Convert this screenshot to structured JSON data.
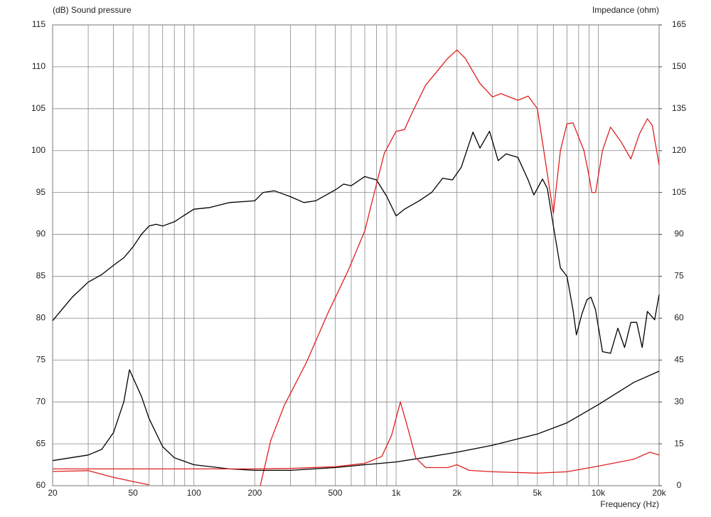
{
  "chart_data": {
    "type": "line",
    "xscale": "log",
    "ylabel": "(dB)  Sound pressure",
    "y2label": "Impedance  (ohm)",
    "xlabel": "Frequency  (Hz)",
    "xlim": [
      20,
      20000
    ],
    "xticks": [
      20,
      50,
      100,
      200,
      500,
      {
        "value": 1000,
        "label": "1k"
      },
      {
        "value": 2000,
        "label": "2k"
      },
      {
        "value": 5000,
        "label": "5k"
      },
      {
        "value": 10000,
        "label": "10k"
      },
      {
        "value": 20000,
        "label": "20k"
      }
    ],
    "xgrid": [
      30,
      40,
      60,
      70,
      80,
      90,
      300,
      400,
      600,
      700,
      800,
      900,
      3000,
      4000,
      6000,
      7000,
      8000,
      9000
    ],
    "ylim": [
      60,
      115
    ],
    "yticks": [
      60,
      65,
      70,
      75,
      80,
      85,
      90,
      95,
      100,
      105,
      110,
      115
    ],
    "y2lim": [
      0,
      165
    ],
    "y2ticks": [
      0,
      15,
      30,
      45,
      60,
      75,
      90,
      105,
      120,
      135,
      150,
      165
    ],
    "grid": true,
    "series": [
      {
        "color": "#000000",
        "x": [
          20,
          25,
          30,
          35,
          40,
          45,
          50,
          55,
          60,
          65,
          70,
          80,
          90,
          100,
          120,
          150,
          200,
          220,
          250,
          300,
          350,
          400,
          500,
          550,
          600,
          700,
          800,
          900,
          1000,
          1100,
          1300,
          1500,
          1700,
          1900,
          2100,
          2400,
          2600,
          2900,
          3200,
          3500,
          4000,
          4500,
          4800,
          5300,
          5600,
          6000,
          6500,
          7000,
          7500,
          7800,
          8300,
          8800,
          9200,
          9700,
          10500,
          11500,
          12500,
          13500,
          14500,
          15500,
          16500,
          17500,
          19000,
          20000
        ],
        "values": [
          79.7,
          82.5,
          84.3,
          85.2,
          86.3,
          87.2,
          88.5,
          90,
          91,
          91.2,
          91,
          91.5,
          92.3,
          93,
          93.2,
          93.8,
          94,
          95,
          95.2,
          94.5,
          93.8,
          94,
          95.3,
          96,
          95.8,
          96.9,
          96.5,
          94.5,
          92.2,
          93,
          94,
          95,
          96.7,
          96.5,
          98,
          102.2,
          100.3,
          102.3,
          98.8,
          99.6,
          99.2,
          96.5,
          94.7,
          96.6,
          95.5,
          91,
          86,
          85,
          81,
          78,
          80.5,
          82.2,
          82.5,
          81,
          76,
          75.8,
          78.8,
          76.5,
          79.5,
          79.5,
          76.5,
          80.8,
          79.8,
          82.8
        ]
      },
      {
        "color": "#e02020",
        "x": [
          20,
          30,
          40,
          50,
          60,
          200,
          213,
          240,
          280,
          360,
          460,
          580,
          700,
          800,
          875,
          1000,
          1100,
          1200,
          1400,
          1600,
          1800,
          2000,
          2200,
          2600,
          3000,
          3300,
          4000,
          4500,
          5000,
          5300,
          6000,
          6500,
          7000,
          7500,
          8500,
          9000,
          9300,
          9700,
          10500,
          11500,
          13000,
          14500,
          16000,
          17500,
          18500,
          20000
        ],
        "values": [
          61.7,
          61.8,
          61,
          60.5,
          60.1,
          null,
          60,
          65.4,
          69.6,
          74.7,
          80.6,
          85.7,
          90.4,
          96,
          99.7,
          102.3,
          102.5,
          104.5,
          107.8,
          109.5,
          111,
          112,
          111,
          108,
          106.4,
          106.8,
          106,
          106.5,
          105,
          101,
          92.5,
          100,
          103.2,
          103.3,
          100,
          97,
          95,
          95,
          100,
          102.8,
          101,
          99,
          102,
          103.8,
          103,
          98.3
        ]
      },
      {
        "color": "#000000",
        "axis": "y2",
        "x": [
          20,
          30,
          35,
          40,
          45,
          48,
          55,
          60,
          70,
          80,
          100,
          150,
          200,
          300,
          500,
          700,
          1000,
          1500,
          2000,
          3000,
          5000,
          7000,
          10000,
          15000,
          20000
        ],
        "values": [
          9,
          11,
          13,
          19,
          30,
          41.5,
          32,
          24,
          14,
          10,
          7.5,
          6,
          5.5,
          5.5,
          6.5,
          7.5,
          8.5,
          10.5,
          12,
          14.5,
          18.5,
          22.5,
          29,
          37,
          41
        ]
      },
      {
        "color": "#e02020",
        "axis": "y2",
        "x": [
          20,
          100,
          200,
          300,
          500,
          700,
          850,
          950,
          1050,
          1150,
          1250,
          1400,
          1800,
          2000,
          2300,
          3000,
          5000,
          7000,
          10000,
          15000,
          18000,
          20000
        ],
        "values": [
          6,
          6,
          6,
          6.2,
          6.8,
          8,
          10.5,
          18,
          30,
          20,
          10,
          6.5,
          6.5,
          7.5,
          5.5,
          5,
          4.5,
          5,
          7,
          9.5,
          12,
          11
        ]
      }
    ]
  }
}
